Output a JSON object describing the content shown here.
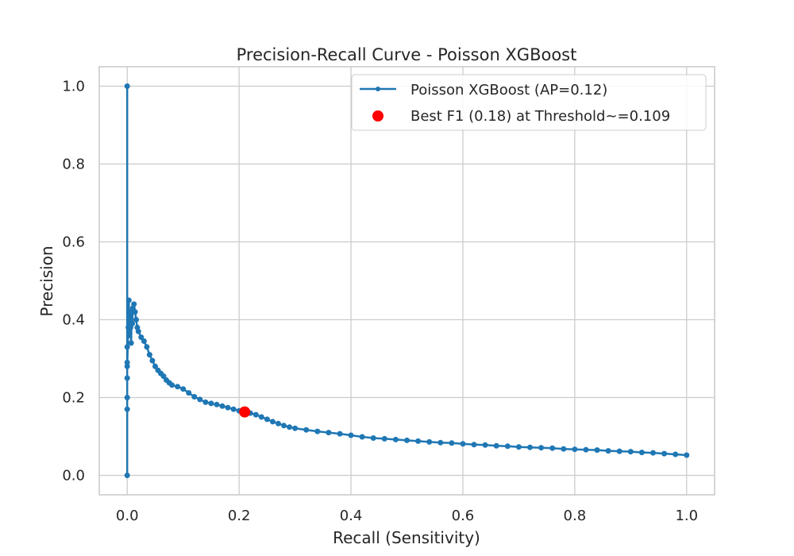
{
  "chart_data": {
    "type": "line",
    "title": "Precision-Recall Curve - Poisson XGBoost",
    "xlabel": "Recall (Sensitivity)",
    "ylabel": "Precision",
    "xlim": [
      -0.05,
      1.05
    ],
    "ylim": [
      -0.05,
      1.05
    ],
    "xticks": [
      "0.0",
      "0.2",
      "0.4",
      "0.6",
      "0.8",
      "1.0"
    ],
    "yticks": [
      "0.0",
      "0.2",
      "0.4",
      "0.6",
      "0.8",
      "1.0"
    ],
    "grid": true,
    "legend_position": "top-right",
    "colors": {
      "series": "#1f77b4",
      "best": "#ff0000",
      "grid": "#cccccc",
      "frame": "#cccccc"
    },
    "series": [
      {
        "name": "Poisson XGBoost (AP=0.12)",
        "points": [
          [
            0.0,
            0.0
          ],
          [
            0.0,
            1.0
          ],
          [
            0.0,
            0.17
          ],
          [
            0.0,
            0.2
          ],
          [
            0.0,
            0.25
          ],
          [
            0.0,
            0.29
          ],
          [
            0.0,
            0.33
          ],
          [
            0.0,
            0.28
          ],
          [
            0.002,
            0.38
          ],
          [
            0.003,
            0.45
          ],
          [
            0.004,
            0.36
          ],
          [
            0.005,
            0.42
          ],
          [
            0.006,
            0.38
          ],
          [
            0.007,
            0.34
          ],
          [
            0.008,
            0.42
          ],
          [
            0.009,
            0.39
          ],
          [
            0.01,
            0.43
          ],
          [
            0.012,
            0.44
          ],
          [
            0.014,
            0.42
          ],
          [
            0.016,
            0.4
          ],
          [
            0.018,
            0.38
          ],
          [
            0.02,
            0.37
          ],
          [
            0.025,
            0.355
          ],
          [
            0.03,
            0.345
          ],
          [
            0.035,
            0.33
          ],
          [
            0.04,
            0.31
          ],
          [
            0.045,
            0.295
          ],
          [
            0.05,
            0.28
          ],
          [
            0.055,
            0.27
          ],
          [
            0.06,
            0.262
          ],
          [
            0.065,
            0.255
          ],
          [
            0.07,
            0.245
          ],
          [
            0.075,
            0.238
          ],
          [
            0.08,
            0.232
          ],
          [
            0.09,
            0.228
          ],
          [
            0.1,
            0.222
          ],
          [
            0.11,
            0.212
          ],
          [
            0.12,
            0.202
          ],
          [
            0.13,
            0.195
          ],
          [
            0.14,
            0.188
          ],
          [
            0.15,
            0.185
          ],
          [
            0.16,
            0.182
          ],
          [
            0.17,
            0.178
          ],
          [
            0.18,
            0.174
          ],
          [
            0.19,
            0.17
          ],
          [
            0.2,
            0.166
          ],
          [
            0.21,
            0.163
          ],
          [
            0.22,
            0.16
          ],
          [
            0.23,
            0.156
          ],
          [
            0.24,
            0.15
          ],
          [
            0.25,
            0.144
          ],
          [
            0.26,
            0.138
          ],
          [
            0.27,
            0.133
          ],
          [
            0.28,
            0.128
          ],
          [
            0.29,
            0.124
          ],
          [
            0.3,
            0.121
          ],
          [
            0.32,
            0.117
          ],
          [
            0.34,
            0.113
          ],
          [
            0.36,
            0.11
          ],
          [
            0.38,
            0.107
          ],
          [
            0.4,
            0.103
          ],
          [
            0.42,
            0.099
          ],
          [
            0.44,
            0.096
          ],
          [
            0.46,
            0.094
          ],
          [
            0.48,
            0.092
          ],
          [
            0.5,
            0.09
          ],
          [
            0.52,
            0.088
          ],
          [
            0.54,
            0.086
          ],
          [
            0.56,
            0.084
          ],
          [
            0.58,
            0.083
          ],
          [
            0.6,
            0.081
          ],
          [
            0.62,
            0.079
          ],
          [
            0.64,
            0.078
          ],
          [
            0.66,
            0.076
          ],
          [
            0.68,
            0.075
          ],
          [
            0.7,
            0.073
          ],
          [
            0.72,
            0.072
          ],
          [
            0.74,
            0.071
          ],
          [
            0.76,
            0.07
          ],
          [
            0.78,
            0.068
          ],
          [
            0.8,
            0.067
          ],
          [
            0.82,
            0.066
          ],
          [
            0.84,
            0.065
          ],
          [
            0.86,
            0.063
          ],
          [
            0.88,
            0.062
          ],
          [
            0.9,
            0.061
          ],
          [
            0.92,
            0.059
          ],
          [
            0.94,
            0.058
          ],
          [
            0.96,
            0.056
          ],
          [
            0.98,
            0.054
          ],
          [
            1.0,
            0.052
          ]
        ]
      }
    ],
    "best_point": {
      "name": "Best F1 (0.18) at Threshold~=0.109",
      "x": 0.21,
      "y": 0.163
    }
  }
}
